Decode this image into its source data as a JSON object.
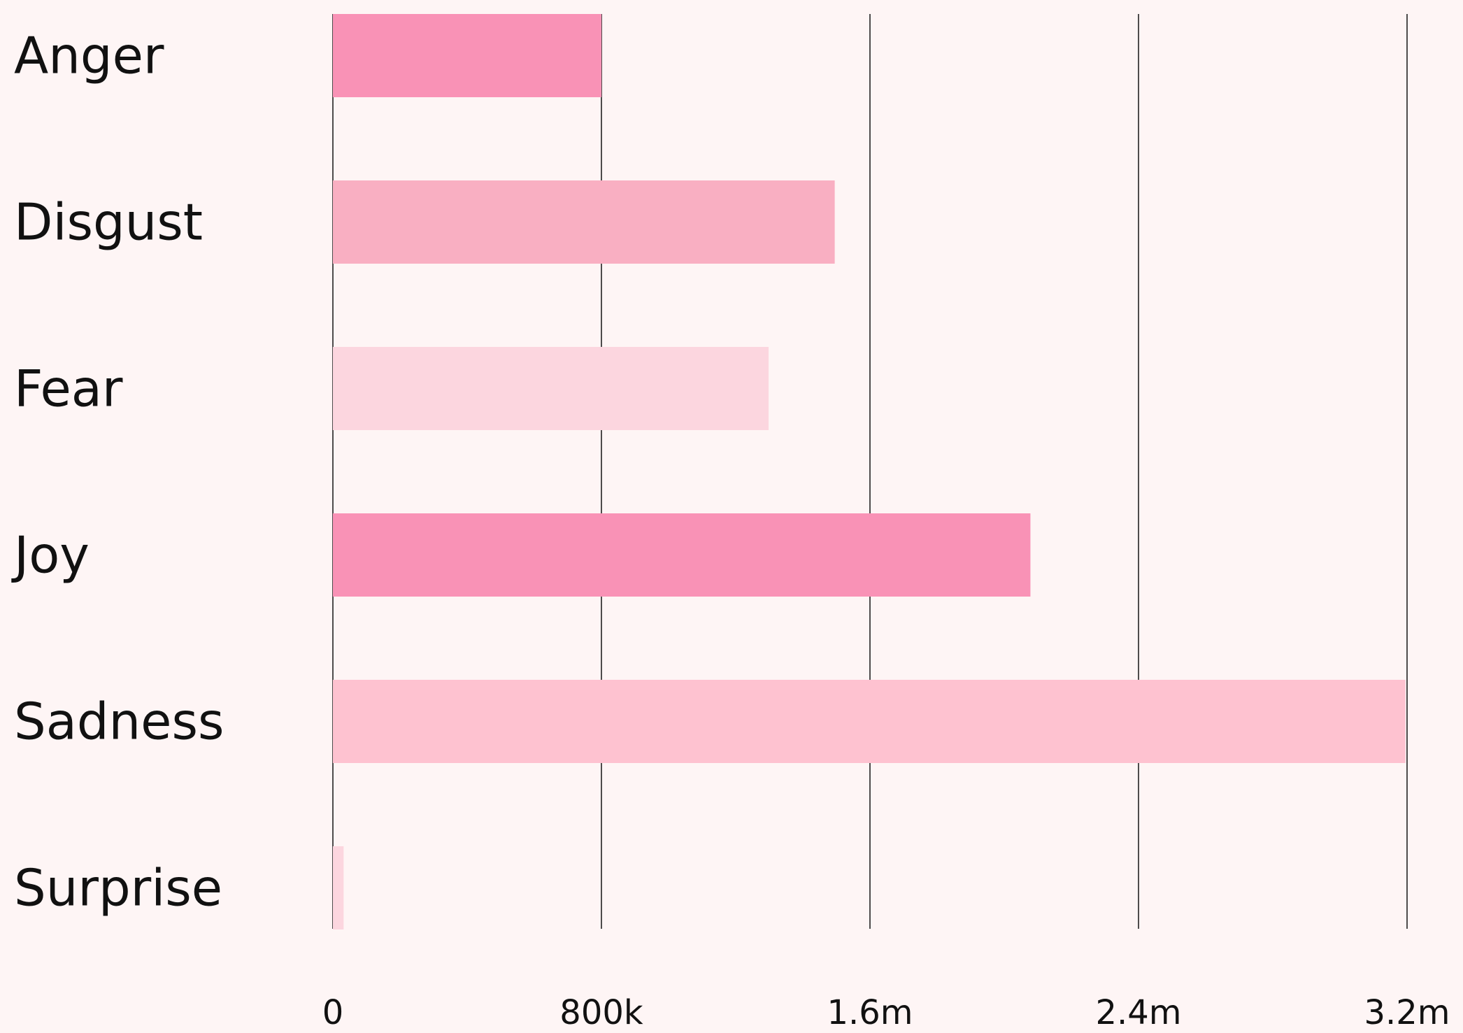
{
  "chart_data": {
    "type": "bar",
    "orientation": "horizontal",
    "categories": [
      "Anger",
      "Disgust",
      "Fear",
      "Joy",
      "Sadness",
      "Surprise"
    ],
    "values": [
      800000,
      1495000,
      1298000,
      2078000,
      3195000,
      32000
    ],
    "colors": [
      "#F992B6",
      "#F9AFC2",
      "#FCD6DF",
      "#F992B6",
      "#FEC2D0",
      "#FCD6DF"
    ],
    "title": "",
    "xlabel": "",
    "ylabel": "",
    "xlim": [
      0,
      3200000
    ],
    "xticks": [
      0,
      800000,
      1600000,
      2400000,
      3200000
    ],
    "xtick_labels": [
      "0",
      "800k",
      "1.6m",
      "2.4m",
      "3.2m"
    ],
    "grid": "vertical",
    "background": "#FEF5F5"
  }
}
